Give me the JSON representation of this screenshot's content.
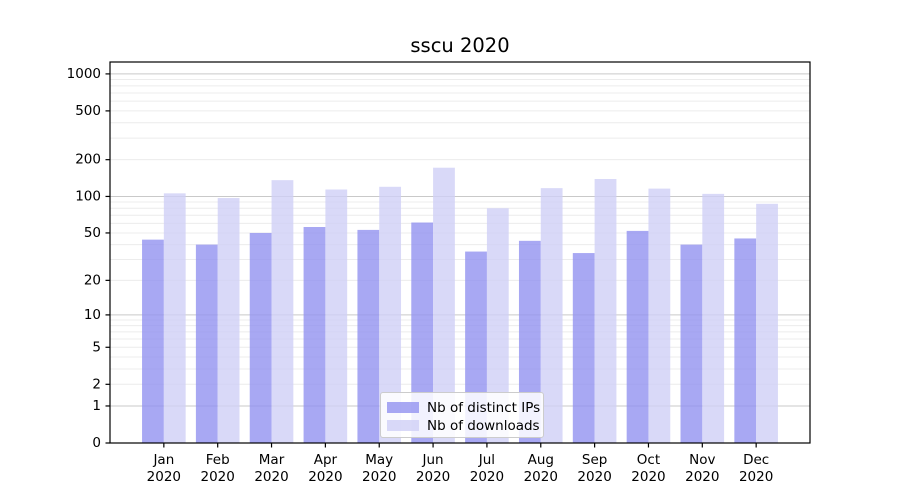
{
  "chart_data": {
    "type": "bar",
    "title": "sscu 2020",
    "categories": [
      "Jan 2020",
      "Feb 2020",
      "Mar 2020",
      "Apr 2020",
      "May 2020",
      "Jun 2020",
      "Jul 2020",
      "Aug 2020",
      "Sep 2020",
      "Oct 2020",
      "Nov 2020",
      "Dec 2020"
    ],
    "month_labels": [
      "Jan",
      "Feb",
      "Mar",
      "Apr",
      "May",
      "Jun",
      "Jul",
      "Aug",
      "Sep",
      "Oct",
      "Nov",
      "Dec"
    ],
    "year_label": "2020",
    "series": [
      {
        "name": "Nb of distinct IPs",
        "color": "#9292f0",
        "opacity": 0.8,
        "values": [
          44,
          40,
          50,
          56,
          53,
          61,
          35,
          43,
          34,
          52,
          40,
          45
        ]
      },
      {
        "name": "Nb of downloads",
        "color": "#cfcff6",
        "opacity": 0.8,
        "values": [
          106,
          97,
          136,
          114,
          120,
          172,
          80,
          117,
          139,
          116,
          105,
          87
        ]
      }
    ],
    "yscale": "log1p",
    "y_ticks": [
      0,
      1,
      2,
      5,
      10,
      20,
      50,
      100,
      200,
      500,
      1000
    ],
    "ylim": [
      0,
      1250
    ],
    "xlabel": "",
    "ylabel": "",
    "legend_position": "lower center",
    "grid": {
      "major_color": "#c9c9c9",
      "minor_color": "#ececec"
    },
    "axis_color": "#000000",
    "tick_label_color": "#000000"
  }
}
